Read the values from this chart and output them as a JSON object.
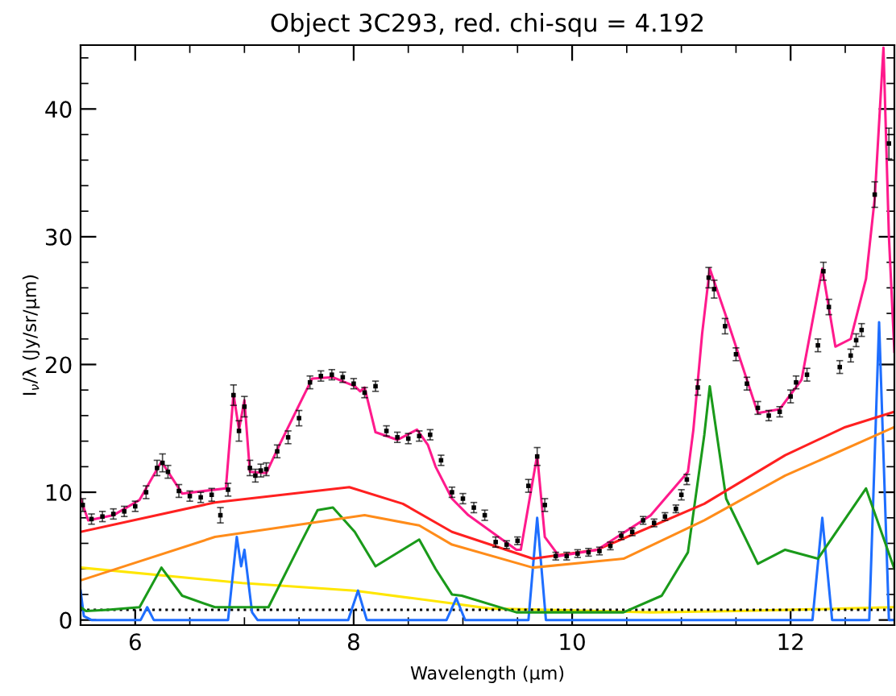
{
  "chart_data": {
    "type": "line",
    "title": "Object 3C293, red. chi-squ = 4.192",
    "xlabel": "Wavelength (μm)",
    "ylabel": "I$_{ν}$/λ (Jy/sr/μm)",
    "xlim": [
      5.5,
      12.95
    ],
    "ylim": [
      -0.4,
      45
    ],
    "xticks": [
      6,
      8,
      10,
      12
    ],
    "yticks": [
      0,
      10,
      20,
      30,
      40
    ],
    "grid": false,
    "legend": false,
    "series": [
      {
        "color": "#ffe600",
        "x": [
          5.5,
          6.98,
          8.01,
          8.9,
          9.24,
          10.72,
          11.5,
          12.5,
          12.95
        ],
        "values": [
          4.1,
          2.9,
          2.3,
          1.3,
          0.9,
          0.6,
          0.7,
          0.9,
          1.0
        ]
      },
      {
        "color": "#000000",
        "line_style": "dotted",
        "x": [
          5.5,
          12.95
        ],
        "values": [
          0.8,
          0.8
        ]
      },
      {
        "color": "#1e6eff",
        "x": [
          5.5,
          5.53,
          5.6,
          6.05,
          6.11,
          6.17,
          6.85,
          6.93,
          6.97,
          7.0,
          7.07,
          7.12,
          7.95,
          8.04,
          8.12,
          8.85,
          8.94,
          9.02,
          9.6,
          9.68,
          9.76,
          12.2,
          12.29,
          12.38,
          12.72,
          12.81,
          12.9,
          12.95
        ],
        "values": [
          2.3,
          0.3,
          0,
          0,
          1.0,
          0,
          0,
          6.5,
          4.2,
          5.5,
          0.6,
          0,
          0,
          2.3,
          0,
          0,
          1.7,
          0,
          0,
          8.0,
          0,
          0,
          8.0,
          0,
          0,
          23.3,
          0,
          0
        ]
      },
      {
        "color": "#1a9a1a",
        "x": [
          5.5,
          5.55,
          5.75,
          6.04,
          6.24,
          6.43,
          6.73,
          7.22,
          7.52,
          7.67,
          7.81,
          8.01,
          8.2,
          8.6,
          8.75,
          8.9,
          8.99,
          9.49,
          10.47,
          10.82,
          11.06,
          11.21,
          11.26,
          11.41,
          11.7,
          11.95,
          12.25,
          12.69,
          12.95
        ],
        "values": [
          1.0,
          0.7,
          0.8,
          1.0,
          4.1,
          1.9,
          1.0,
          1.0,
          6.1,
          8.6,
          8.8,
          6.9,
          4.2,
          6.3,
          4.0,
          2.0,
          1.9,
          0.6,
          0.6,
          1.9,
          5.3,
          14.5,
          18.3,
          9.5,
          4.4,
          5.5,
          4.8,
          10.3,
          4.0
        ]
      },
      {
        "color": "#ff8c1a",
        "x": [
          5.5,
          6.73,
          8.1,
          8.6,
          8.9,
          9.64,
          10.47,
          11.21,
          11.95,
          12.95
        ],
        "values": [
          3.1,
          6.5,
          8.2,
          7.4,
          5.9,
          4.1,
          4.8,
          7.8,
          11.3,
          15.1
        ]
      },
      {
        "color": "#ff2020",
        "x": [
          5.5,
          6.73,
          7.96,
          8.45,
          8.9,
          9.64,
          10.23,
          11.21,
          11.95,
          12.5,
          12.95
        ],
        "values": [
          6.9,
          9.2,
          10.4,
          9.1,
          6.9,
          4.8,
          5.5,
          9.1,
          12.9,
          15.1,
          16.3
        ]
      },
      {
        "color": "#ff1a8c",
        "x": [
          5.5,
          5.57,
          5.8,
          6.04,
          6.24,
          6.43,
          6.83,
          6.9,
          6.95,
          7.0,
          7.05,
          7.2,
          7.32,
          7.62,
          7.81,
          8.01,
          8.06,
          8.1,
          8.2,
          8.4,
          8.58,
          8.68,
          8.75,
          8.9,
          9.05,
          9.49,
          9.53,
          9.68,
          9.75,
          9.88,
          10.23,
          10.72,
          11.06,
          11.11,
          11.19,
          11.26,
          11.4,
          11.7,
          11.9,
          12.1,
          12.29,
          12.41,
          12.55,
          12.69,
          12.77,
          12.85,
          12.9,
          12.95
        ],
        "values": [
          9.5,
          7.8,
          8.2,
          9.4,
          12.4,
          9.9,
          10.3,
          17.7,
          14.9,
          17.2,
          11.6,
          11.5,
          13.7,
          18.9,
          19.0,
          18.3,
          17.9,
          18.2,
          14.7,
          14.1,
          14.9,
          13.7,
          12.0,
          9.5,
          8.2,
          5.5,
          5.5,
          12.9,
          6.5,
          5.0,
          5.5,
          8.2,
          11.6,
          14.9,
          22.4,
          27.5,
          24.0,
          16.2,
          16.5,
          18.8,
          27.5,
          21.4,
          22.0,
          26.7,
          33.0,
          44.8,
          30.0,
          21.0
        ]
      },
      {
        "type": "scatter",
        "color": "#000000",
        "marker": "square",
        "x": [
          5.52,
          5.6,
          5.7,
          5.8,
          5.9,
          6.0,
          6.1,
          6.2,
          6.25,
          6.3,
          6.4,
          6.5,
          6.6,
          6.7,
          6.78,
          6.85,
          6.9,
          6.95,
          7.0,
          7.05,
          7.1,
          7.15,
          7.2,
          7.3,
          7.4,
          7.5,
          7.6,
          7.7,
          7.8,
          7.9,
          8.0,
          8.1,
          8.2,
          8.3,
          8.4,
          8.5,
          8.6,
          8.7,
          8.8,
          8.9,
          9.0,
          9.1,
          9.2,
          9.3,
          9.4,
          9.5,
          9.6,
          9.68,
          9.75,
          9.85,
          9.95,
          10.05,
          10.15,
          10.25,
          10.35,
          10.45,
          10.55,
          10.65,
          10.75,
          10.85,
          10.95,
          11.0,
          11.05,
          11.15,
          11.25,
          11.3,
          11.4,
          11.5,
          11.6,
          11.7,
          11.8,
          11.9,
          12.0,
          12.05,
          12.15,
          12.25,
          12.3,
          12.35,
          12.45,
          12.55,
          12.6,
          12.65,
          12.77,
          12.9
        ],
        "values": [
          9.0,
          7.9,
          8.1,
          8.3,
          8.5,
          8.9,
          10.0,
          11.9,
          12.3,
          11.6,
          10.1,
          9.7,
          9.6,
          9.8,
          8.2,
          10.2,
          17.6,
          14.8,
          16.7,
          11.9,
          11.3,
          11.7,
          11.8,
          13.2,
          14.3,
          15.8,
          18.6,
          19.1,
          19.2,
          19.0,
          18.5,
          17.8,
          18.3,
          14.8,
          14.3,
          14.2,
          14.4,
          14.5,
          12.5,
          10.0,
          9.5,
          8.8,
          8.2,
          6.1,
          5.9,
          6.2,
          10.5,
          12.8,
          9.0,
          5.0,
          5.0,
          5.2,
          5.3,
          5.4,
          5.8,
          6.6,
          6.9,
          7.8,
          7.6,
          8.1,
          8.7,
          9.8,
          11.0,
          18.2,
          26.8,
          25.9,
          23.0,
          20.8,
          18.5,
          16.6,
          16.0,
          16.3,
          17.5,
          18.6,
          19.2,
          21.5,
          27.3,
          24.5,
          19.8,
          20.7,
          21.9,
          22.7,
          33.3,
          37.3
        ],
        "errors": [
          0.5,
          0.4,
          0.4,
          0.4,
          0.4,
          0.4,
          0.5,
          0.6,
          0.7,
          0.5,
          0.5,
          0.4,
          0.4,
          0.5,
          0.6,
          0.5,
          0.8,
          0.8,
          0.8,
          0.6,
          0.5,
          0.5,
          0.5,
          0.5,
          0.5,
          0.6,
          0.5,
          0.4,
          0.4,
          0.4,
          0.4,
          0.4,
          0.4,
          0.4,
          0.4,
          0.4,
          0.4,
          0.4,
          0.4,
          0.4,
          0.4,
          0.4,
          0.4,
          0.4,
          0.3,
          0.3,
          0.5,
          0.7,
          0.5,
          0.3,
          0.3,
          0.3,
          0.3,
          0.3,
          0.3,
          0.3,
          0.3,
          0.3,
          0.3,
          0.3,
          0.3,
          0.4,
          0.4,
          0.6,
          0.8,
          0.7,
          0.6,
          0.5,
          0.5,
          0.5,
          0.4,
          0.4,
          0.5,
          0.5,
          0.5,
          0.5,
          0.7,
          0.6,
          0.5,
          0.5,
          0.5,
          0.5,
          1.0,
          1.2
        ]
      }
    ]
  }
}
